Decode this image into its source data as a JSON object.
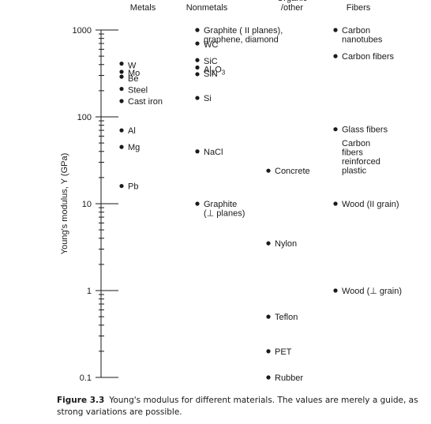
{
  "chart_data": {
    "type": "scatter",
    "title": "",
    "ylabel": "Young's modulus, Y (GPa)",
    "yscale": "log",
    "ylim": [
      0.1,
      1000
    ],
    "yticks": [
      {
        "value": 1000,
        "label": "1000"
      },
      {
        "value": 100,
        "label": "100"
      },
      {
        "value": 10,
        "label": "10"
      },
      {
        "value": 1,
        "label": "1"
      },
      {
        "value": 0.1,
        "label": "0.1"
      }
    ],
    "categories": [
      "Metals",
      "Nonmetals",
      "Organic /other",
      "Fibers"
    ],
    "category_headers": [
      {
        "lines": [
          "Metals"
        ]
      },
      {
        "lines": [
          "Nonmetals"
        ]
      },
      {
        "lines": [
          "Organic",
          "/other"
        ]
      },
      {
        "lines": [
          "Fibers"
        ]
      }
    ],
    "points": [
      {
        "category": "Metals",
        "label": "W",
        "y": 410
      },
      {
        "category": "Metals",
        "label": "Mo",
        "y": 330
      },
      {
        "category": "Metals",
        "label": "Be",
        "y": 290
      },
      {
        "category": "Metals",
        "label": "Steel",
        "y": 210
      },
      {
        "category": "Metals",
        "label": "Cast iron",
        "y": 152
      },
      {
        "category": "Metals",
        "label": "Al",
        "y": 70
      },
      {
        "category": "Metals",
        "label": "Mg",
        "y": 45
      },
      {
        "category": "Metals",
        "label": "Pb",
        "y": 16
      },
      {
        "category": "Nonmetals",
        "label": "Graphite ( II planes), graphene, diamond",
        "y": 1000
      },
      {
        "category": "Nonmetals",
        "label": "WC",
        "y": 700
      },
      {
        "category": "Nonmetals",
        "label": "SiC",
        "y": 450
      },
      {
        "category": "Nonmetals",
        "label": "Al2O3",
        "y": 370
      },
      {
        "category": "Nonmetals",
        "label": "SiN",
        "y": 310
      },
      {
        "category": "Nonmetals",
        "label": "Si",
        "y": 165
      },
      {
        "category": "Nonmetals",
        "label": "NaCl",
        "y": 40
      },
      {
        "category": "Nonmetals",
        "label": "Graphite (⊥ planes)",
        "y": 10
      },
      {
        "category": "Organic /other",
        "label": "Concrete",
        "y": 24
      },
      {
        "category": "Organic /other",
        "label": "Nylon",
        "y": 3.5
      },
      {
        "category": "Organic /other",
        "label": "Teflon",
        "y": 0.5
      },
      {
        "category": "Organic /other",
        "label": "PET",
        "y": 0.2
      },
      {
        "category": "Organic /other",
        "label": "Rubber",
        "y": 0.1
      },
      {
        "category": "Fibers",
        "label": "Carbon nanotubes",
        "y": 1000
      },
      {
        "category": "Fibers",
        "label": "Carbon fibers",
        "y": 500
      },
      {
        "category": "Fibers",
        "label": "Glass fibers",
        "y": 72
      },
      {
        "category": "Fibers",
        "label": "Carbon fibers reinforced plastic",
        "y": 50
      },
      {
        "category": "Fibers",
        "label": "Wood (II grain)",
        "y": 10
      },
      {
        "category": "Fibers",
        "label": "Wood (⊥ grain)",
        "y": 1
      }
    ]
  },
  "caption": {
    "figure": "Figure 3.3",
    "text": "Young's modulus for different materials. The values are merely a guide, as strong variations are possible."
  }
}
